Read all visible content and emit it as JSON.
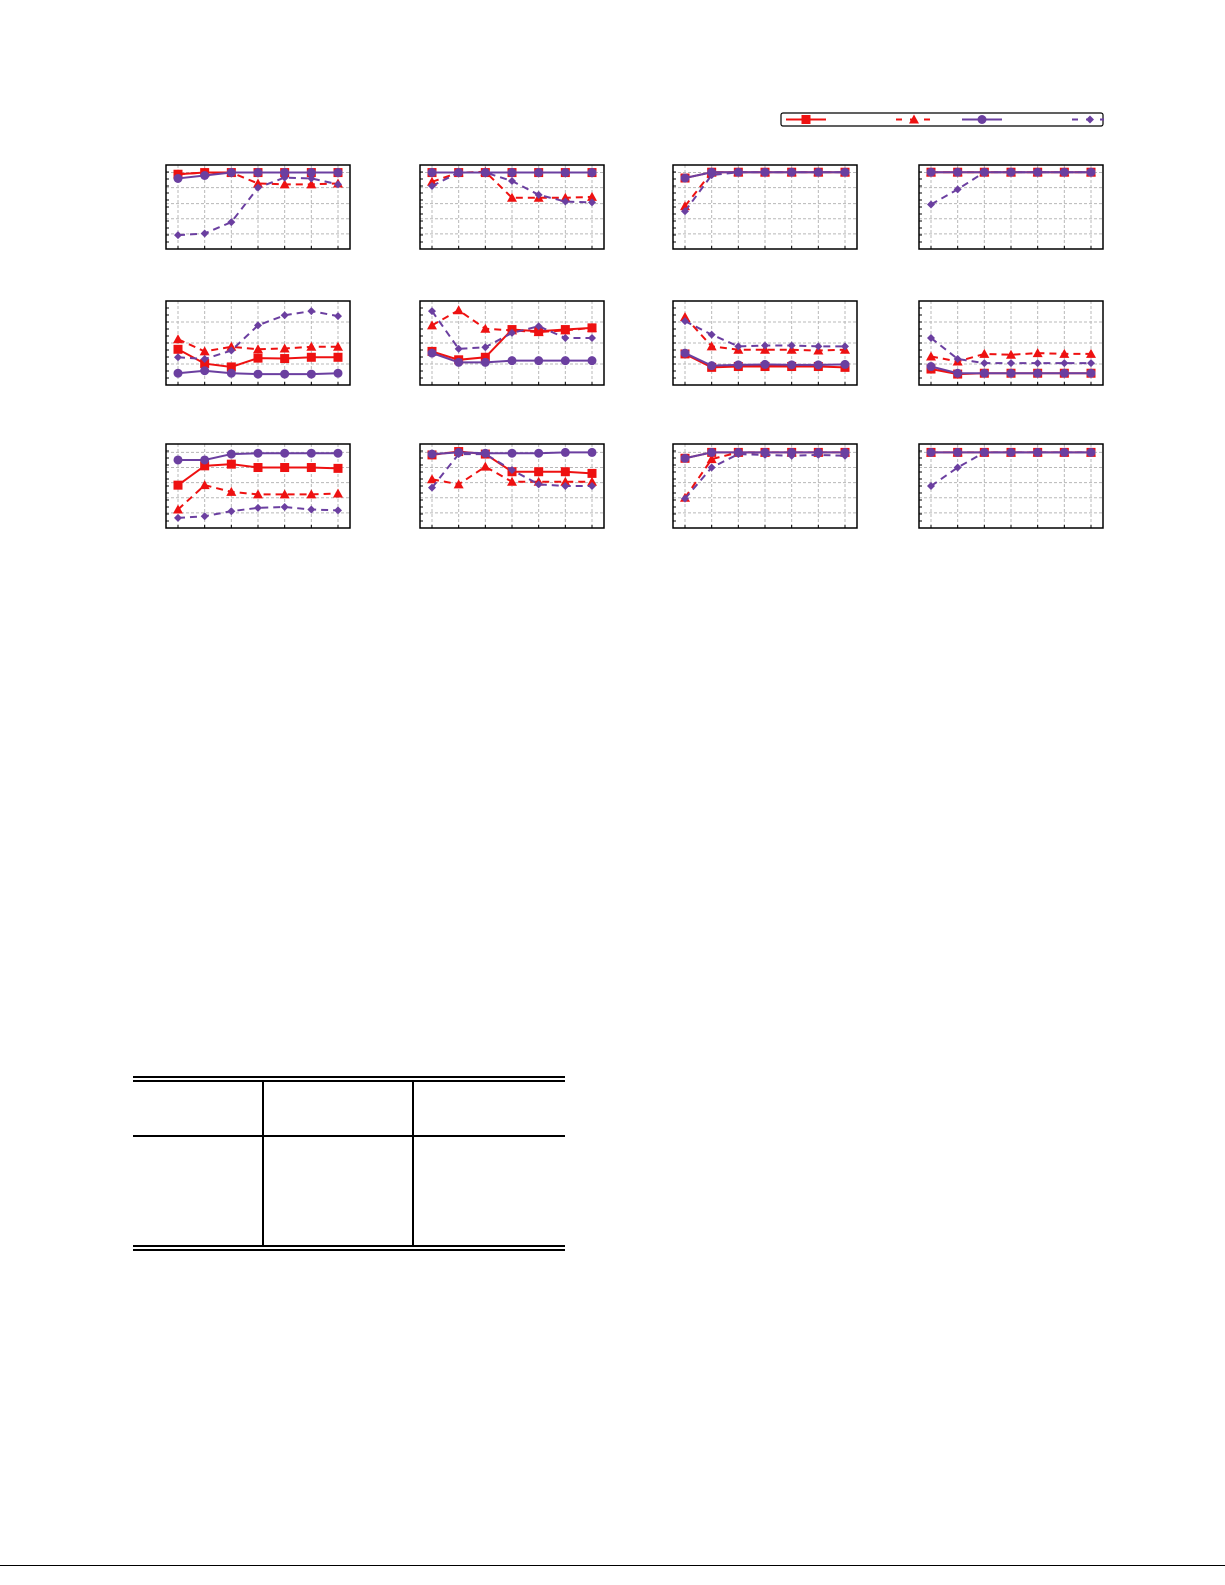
{
  "colors": {
    "red": "#ee1111",
    "purple": "#6b3fa0",
    "grid": "#b8b8b8"
  },
  "series_styles": [
    {
      "color": "red",
      "dash": false,
      "marker": "square"
    },
    {
      "color": "red",
      "dash": true,
      "marker": "triangle"
    },
    {
      "color": "purple",
      "dash": false,
      "marker": "circle"
    },
    {
      "color": "purple",
      "dash": true,
      "marker": "diamond"
    }
  ],
  "chart_data": [
    {
      "type": "line",
      "x": [
        1,
        2,
        3,
        4,
        5,
        6,
        7
      ],
      "ylim": [
        0,
        1
      ],
      "grid": true,
      "series": [
        {
          "values": [
            0.89,
            0.91,
            0.91,
            0.91,
            0.91,
            0.91,
            0.91
          ]
        },
        {
          "values": [
            0.89,
            0.91,
            0.91,
            0.78,
            0.77,
            0.77,
            0.78
          ]
        },
        {
          "values": [
            0.84,
            0.875,
            0.91,
            0.91,
            0.91,
            0.91,
            0.91
          ]
        },
        {
          "values": [
            0.165,
            0.185,
            0.32,
            0.73,
            0.85,
            0.84,
            0.77
          ]
        }
      ]
    },
    {
      "type": "line",
      "x": [
        1,
        2,
        3,
        4,
        5,
        6,
        7
      ],
      "ylim": [
        0,
        1
      ],
      "grid": true,
      "series": [
        {
          "values": [
            0.91,
            0.91,
            0.91,
            0.91,
            0.91,
            0.91,
            0.91
          ]
        },
        {
          "values": [
            0.8,
            0.91,
            0.92,
            0.61,
            0.61,
            0.61,
            0.62
          ]
        },
        {
          "values": [
            0.91,
            0.91,
            0.91,
            0.91,
            0.91,
            0.91,
            0.91
          ]
        },
        {
          "values": [
            0.75,
            0.91,
            0.91,
            0.81,
            0.645,
            0.565,
            0.555
          ]
        }
      ]
    },
    {
      "type": "line",
      "x": [
        1,
        2,
        3,
        4,
        5,
        6,
        7
      ],
      "ylim": [
        0,
        1
      ],
      "grid": true,
      "series": [
        {
          "values": [
            0.845,
            0.914,
            0.914,
            0.914,
            0.914,
            0.914,
            0.914
          ]
        },
        {
          "values": [
            0.51,
            0.914,
            0.914,
            0.914,
            0.914,
            0.914,
            0.914
          ]
        },
        {
          "values": [
            0.845,
            0.914,
            0.914,
            0.914,
            0.914,
            0.914,
            0.914
          ]
        },
        {
          "values": [
            0.45,
            0.88,
            0.914,
            0.914,
            0.914,
            0.914,
            0.914
          ]
        }
      ]
    },
    {
      "type": "line",
      "x": [
        1,
        2,
        3,
        4,
        5,
        6,
        7
      ],
      "ylim": [
        0,
        1
      ],
      "grid": true,
      "series": [
        {
          "values": [
            0.914,
            0.914,
            0.914,
            0.914,
            0.914,
            0.914,
            0.914
          ]
        },
        {
          "values": [
            0.914,
            0.914,
            0.914,
            0.914,
            0.914,
            0.914,
            0.914
          ]
        },
        {
          "values": [
            0.914,
            0.914,
            0.914,
            0.914,
            0.914,
            0.914,
            0.914
          ]
        },
        {
          "values": [
            0.53,
            0.71,
            0.914,
            0.914,
            0.914,
            0.914,
            0.914
          ]
        }
      ]
    },
    {
      "type": "line",
      "x": [
        1,
        2,
        3,
        4,
        5,
        6,
        7
      ],
      "ylim": [
        0,
        1
      ],
      "grid": true,
      "series": [
        {
          "values": [
            0.425,
            0.255,
            0.215,
            0.32,
            0.315,
            0.33,
            0.33
          ]
        },
        {
          "values": [
            0.545,
            0.4,
            0.455,
            0.425,
            0.435,
            0.455,
            0.455
          ]
        },
        {
          "values": [
            0.14,
            0.17,
            0.14,
            0.13,
            0.13,
            0.13,
            0.14
          ]
        },
        {
          "values": [
            0.33,
            0.31,
            0.41,
            0.71,
            0.83,
            0.88,
            0.82
          ]
        }
      ]
    },
    {
      "type": "line",
      "x": [
        1,
        2,
        3,
        4,
        5,
        6,
        7
      ],
      "ylim": [
        0,
        1
      ],
      "grid": true,
      "series": [
        {
          "values": [
            0.4,
            0.3,
            0.33,
            0.66,
            0.64,
            0.66,
            0.68
          ]
        },
        {
          "values": [
            0.71,
            0.89,
            0.67,
            0.65,
            0.63,
            0.65,
            0.68
          ]
        },
        {
          "values": [
            0.38,
            0.27,
            0.27,
            0.29,
            0.29,
            0.29,
            0.29
          ]
        },
        {
          "values": [
            0.88,
            0.43,
            0.45,
            0.62,
            0.7,
            0.56,
            0.56
          ]
        }
      ]
    },
    {
      "type": "line",
      "x": [
        1,
        2,
        3,
        4,
        5,
        6,
        7
      ],
      "ylim": [
        0,
        1
      ],
      "grid": true,
      "series": [
        {
          "values": [
            0.37,
            0.21,
            0.22,
            0.22,
            0.22,
            0.22,
            0.21
          ]
        },
        {
          "values": [
            0.81,
            0.46,
            0.42,
            0.42,
            0.42,
            0.41,
            0.42
          ]
        },
        {
          "values": [
            0.38,
            0.23,
            0.24,
            0.245,
            0.24,
            0.24,
            0.245
          ]
        },
        {
          "values": [
            0.76,
            0.6,
            0.46,
            0.47,
            0.47,
            0.46,
            0.46
          ]
        }
      ]
    },
    {
      "type": "line",
      "x": [
        1,
        2,
        3,
        4,
        5,
        6,
        7
      ],
      "ylim": [
        0,
        1
      ],
      "grid": true,
      "series": [
        {
          "values": [
            0.19,
            0.13,
            0.14,
            0.14,
            0.14,
            0.14,
            0.14
          ]
        },
        {
          "values": [
            0.34,
            0.28,
            0.37,
            0.36,
            0.38,
            0.37,
            0.37
          ]
        },
        {
          "values": [
            0.22,
            0.14,
            0.14,
            0.14,
            0.14,
            0.14,
            0.14
          ]
        },
        {
          "values": [
            0.56,
            0.31,
            0.26,
            0.26,
            0.26,
            0.26,
            0.26
          ]
        }
      ]
    },
    {
      "type": "line",
      "x": [
        1,
        2,
        3,
        4,
        5,
        6,
        7
      ],
      "ylim": [
        0,
        1
      ],
      "grid": true,
      "series": [
        {
          "values": [
            0.51,
            0.74,
            0.76,
            0.72,
            0.72,
            0.72,
            0.71
          ]
        },
        {
          "values": [
            0.22,
            0.51,
            0.43,
            0.4,
            0.4,
            0.4,
            0.41
          ]
        },
        {
          "values": [
            0.81,
            0.81,
            0.88,
            0.89,
            0.89,
            0.89,
            0.89
          ]
        },
        {
          "values": [
            0.12,
            0.14,
            0.2,
            0.24,
            0.25,
            0.22,
            0.21
          ]
        }
      ]
    },
    {
      "type": "line",
      "x": [
        1,
        2,
        3,
        4,
        5,
        6,
        7
      ],
      "ylim": [
        0,
        1
      ],
      "grid": true,
      "series": [
        {
          "values": [
            0.87,
            0.91,
            0.88,
            0.67,
            0.67,
            0.67,
            0.65
          ]
        },
        {
          "values": [
            0.58,
            0.52,
            0.73,
            0.55,
            0.55,
            0.55,
            0.55
          ]
        },
        {
          "values": [
            0.88,
            0.9,
            0.89,
            0.89,
            0.89,
            0.9,
            0.9
          ]
        },
        {
          "values": [
            0.48,
            0.88,
            0.88,
            0.69,
            0.52,
            0.5,
            0.5
          ]
        }
      ]
    },
    {
      "type": "line",
      "x": [
        1,
        2,
        3,
        4,
        5,
        6,
        7
      ],
      "ylim": [
        0,
        1
      ],
      "grid": true,
      "series": [
        {
          "values": [
            0.83,
            0.9,
            0.9,
            0.9,
            0.9,
            0.9,
            0.9
          ]
        },
        {
          "values": [
            0.36,
            0.82,
            0.9,
            0.9,
            0.9,
            0.9,
            0.9
          ]
        },
        {
          "values": [
            0.83,
            0.9,
            0.9,
            0.9,
            0.9,
            0.9,
            0.9
          ]
        },
        {
          "values": [
            0.35,
            0.72,
            0.88,
            0.87,
            0.86,
            0.87,
            0.86
          ]
        }
      ]
    },
    {
      "type": "line",
      "x": [
        1,
        2,
        3,
        4,
        5,
        6,
        7
      ],
      "ylim": [
        0,
        1
      ],
      "grid": true,
      "series": [
        {
          "values": [
            0.9,
            0.9,
            0.9,
            0.9,
            0.9,
            0.9,
            0.9
          ]
        },
        {
          "values": [
            0.9,
            0.9,
            0.9,
            0.9,
            0.9,
            0.9,
            0.9
          ]
        },
        {
          "values": [
            0.9,
            0.9,
            0.9,
            0.9,
            0.9,
            0.9,
            0.9
          ]
        },
        {
          "values": [
            0.5,
            0.72,
            0.9,
            0.9,
            0.9,
            0.9,
            0.9
          ]
        }
      ]
    }
  ]
}
